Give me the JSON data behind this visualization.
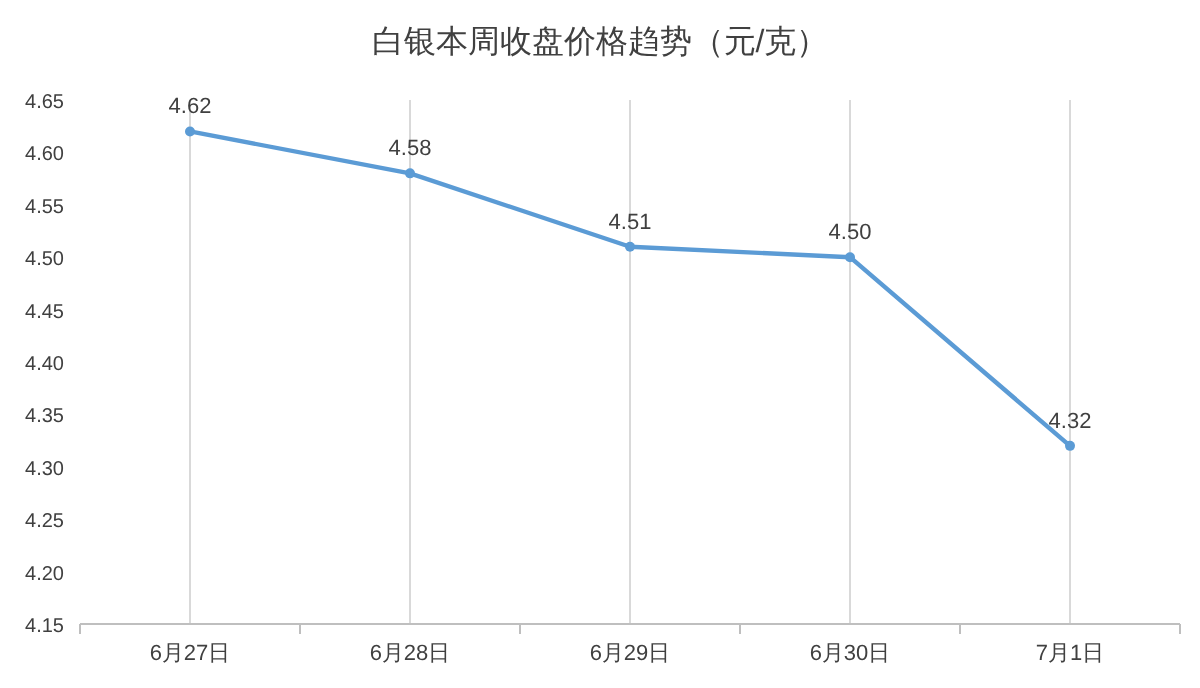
{
  "chart_data": {
    "type": "line",
    "title": "白银本周收盘价格趋势（元/克）",
    "categories": [
      "6月27日",
      "6月28日",
      "6月29日",
      "6月30日",
      "7月1日"
    ],
    "series": [
      {
        "color": "#5b9bd5",
        "values": [
          4.62,
          4.58,
          4.51,
          4.5,
          4.32
        ],
        "value_labels": [
          "4.62",
          "4.58",
          "4.51",
          "4.50",
          "4.32"
        ]
      }
    ],
    "ylim": [
      4.15,
      4.65
    ],
    "yticks": [
      4.15,
      {
        "value": 4.2,
        "label": "4.20"
      },
      4.25,
      {
        "value": 4.3,
        "label": "4.30"
      },
      4.35,
      {
        "value": 4.4,
        "label": "4.40"
      },
      4.45,
      {
        "value": 4.5,
        "label": "4.50"
      },
      4.55,
      {
        "value": 4.6,
        "label": "4.60"
      },
      4.65
    ],
    "grid": "x",
    "marker": "circle",
    "line_style": "solid"
  }
}
